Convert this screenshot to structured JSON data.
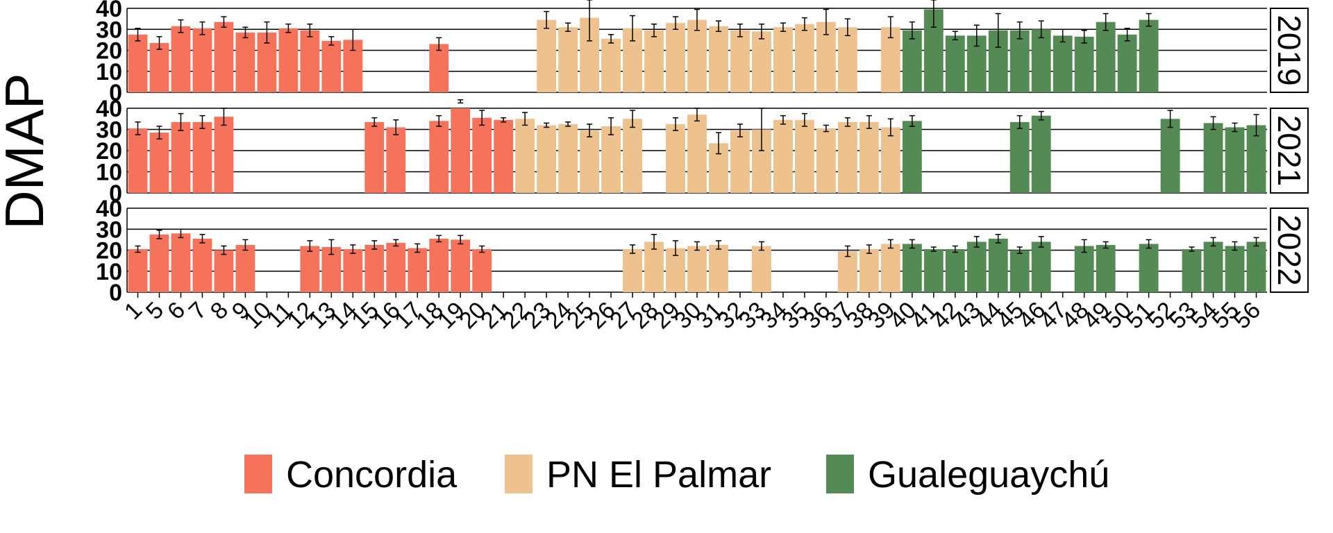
{
  "chart_data": {
    "type": "bar",
    "ylabel": "DMAP",
    "ylim": [
      0,
      40
    ],
    "yticks": [
      0,
      10,
      20,
      30,
      40
    ],
    "grid": true,
    "legend_position": "bottom",
    "legend": [
      {
        "name": "Concordia",
        "color": "#F5735A"
      },
      {
        "name": "PN El Palmar",
        "color": "#EEC28E"
      },
      {
        "name": "Gualeguaychú",
        "color": "#548B54"
      }
    ],
    "categories": [
      "1",
      "5",
      "6",
      "7",
      "8",
      "9",
      "10",
      "11",
      "12",
      "13",
      "14",
      "15",
      "16",
      "17",
      "18",
      "19",
      "20",
      "21",
      "22",
      "23",
      "24",
      "25",
      "26",
      "27",
      "28",
      "29",
      "30",
      "31",
      "32",
      "33",
      "34",
      "35",
      "36",
      "37",
      "38",
      "39",
      "40",
      "41",
      "42",
      "43",
      "44",
      "45",
      "46",
      "47",
      "48",
      "49",
      "50",
      "51",
      "52",
      "53",
      "54",
      "55",
      "56"
    ],
    "x_tick_labels": [
      "1",
      "5",
      "6",
      "7",
      "8",
      "9",
      "10",
      "11",
      "12",
      "13",
      "14",
      "15",
      "16",
      "17",
      "18",
      "19",
      "20",
      "21",
      "22",
      "23",
      "24",
      "25",
      "26",
      "27",
      "28",
      "29",
      "30",
      "31",
      "32",
      "33",
      "34",
      "35",
      "36",
      "37",
      "38",
      "39",
      "40",
      "41",
      "42",
      "43",
      "44",
      "45",
      "46",
      "47",
      "48",
      "49",
      "50",
      "51",
      "52",
      "53",
      "54",
      "55",
      "56"
    ],
    "category_group": [
      0,
      0,
      0,
      0,
      0,
      0,
      0,
      0,
      0,
      0,
      0,
      0,
      0,
      0,
      0,
      0,
      0,
      0,
      1,
      1,
      1,
      1,
      1,
      1,
      1,
      1,
      1,
      1,
      1,
      1,
      1,
      1,
      1,
      1,
      1,
      1,
      2,
      2,
      2,
      2,
      2,
      2,
      2,
      2,
      2,
      2,
      2,
      2,
      2,
      2,
      2,
      2,
      2
    ],
    "facets": [
      {
        "label": "2019",
        "values": [
          27.5,
          23.5,
          31.5,
          30.5,
          33.5,
          28.5,
          28.5,
          30.5,
          29.5,
          24.5,
          25,
          null,
          null,
          null,
          23,
          null,
          null,
          null,
          null,
          34.5,
          31,
          35.5,
          25.5,
          30.5,
          29.5,
          33,
          34.5,
          31.5,
          29.5,
          29,
          31,
          32.5,
          33.5,
          31,
          null,
          31,
          29.5,
          39.5,
          27,
          27,
          29.5,
          29.5,
          30,
          27,
          26.5,
          33.5,
          27.5,
          34.5,
          null,
          null,
          null,
          null,
          null
        ],
        "errors": [
          3,
          3,
          3,
          3,
          2.5,
          2.5,
          5,
          2,
          3,
          2,
          5,
          null,
          null,
          null,
          3,
          null,
          null,
          null,
          null,
          4,
          2,
          11,
          2,
          6,
          3,
          3,
          5,
          2.5,
          3,
          3.5,
          2,
          3,
          6,
          4,
          null,
          5,
          4,
          8.5,
          2,
          5,
          8,
          4,
          4,
          3,
          3,
          4,
          3,
          3,
          null,
          null,
          null,
          null,
          null
        ]
      },
      {
        "label": "2021",
        "values": [
          30.5,
          28.5,
          33.5,
          33.5,
          36,
          null,
          null,
          null,
          null,
          null,
          null,
          33.5,
          31,
          null,
          34,
          44.5,
          35.5,
          34.5,
          35,
          32,
          32.5,
          29.5,
          31.5,
          35,
          null,
          32.5,
          37,
          23.5,
          29.5,
          30,
          34.5,
          34.5,
          30.5,
          33.5,
          33.5,
          31,
          34,
          null,
          null,
          null,
          null,
          33.5,
          36.5,
          null,
          null,
          null,
          null,
          null,
          35,
          null,
          33,
          31,
          32
        ]
      },
      {
        "label": "2022",
        "values": [
          20.5,
          27.5,
          28,
          25.5,
          20,
          22.5,
          null,
          null,
          22,
          21.5,
          20.5,
          22.5,
          23.5,
          21,
          25.5,
          25,
          20.5,
          null,
          null,
          null,
          null,
          null,
          null,
          20.5,
          24,
          21,
          22,
          22.5,
          null,
          22,
          null,
          null,
          null,
          19.5,
          20.5,
          23,
          23,
          20.5,
          20.5,
          24,
          25.5,
          20,
          24,
          null,
          22,
          22.5,
          null,
          23,
          null,
          20.5,
          24,
          22,
          24
        ]
      }
    ],
    "errors_2021": [
      3,
      3,
      4,
      3,
      4,
      null,
      null,
      null,
      null,
      null,
      null,
      2,
      3.5,
      null,
      2.5,
      2,
      3.5,
      1,
      3,
      1,
      1,
      3,
      4,
      4,
      null,
      3,
      3,
      5,
      3,
      10,
      2,
      3,
      1.5,
      2,
      3,
      4,
      2.5,
      null,
      null,
      null,
      null,
      3,
      2,
      null,
      null,
      null,
      null,
      null,
      4,
      null,
      3,
      2,
      5
    ],
    "errors_2022": [
      1.5,
      2,
      2,
      2,
      2,
      2.5,
      null,
      null,
      2.5,
      3.5,
      2,
      2,
      1.5,
      2,
      1.5,
      2,
      1.5,
      null,
      null,
      null,
      null,
      null,
      null,
      2,
      3.5,
      3.5,
      2,
      2,
      null,
      2,
      null,
      null,
      null,
      2.5,
      2,
      2,
      2,
      1,
      1.5,
      2.5,
      2,
      1.5,
      2.5,
      null,
      3,
      1.5,
      null,
      2,
      null,
      1,
      2,
      2,
      2
    ]
  }
}
